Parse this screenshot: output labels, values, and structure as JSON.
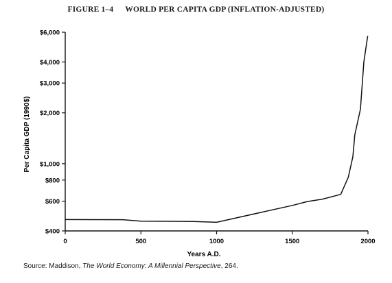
{
  "figure": {
    "number": "FIGURE 1–4",
    "title": "WORLD PER CAPITA GDP (INFLATION-ADJUSTED)"
  },
  "source": {
    "prefix": "Source: Maddison, ",
    "work": "The World Economy: A Millennial Perspective",
    "suffix": ", 264."
  },
  "chart_data": {
    "type": "line",
    "title": "WORLD PER CAPITA GDP (INFLATION-ADJUSTED)",
    "xlabel": "Years A.D.",
    "ylabel": "Per Capita GDP (1990$)",
    "xlim": [
      0,
      2000
    ],
    "ylim": [
      400,
      6000
    ],
    "yscale": "log",
    "grid": false,
    "legend": "none",
    "xticks": [
      {
        "value": 0,
        "label": "0"
      },
      {
        "value": 500,
        "label": "500"
      },
      {
        "value": 1000,
        "label": "1000"
      },
      {
        "value": 1500,
        "label": "1500"
      },
      {
        "value": 2000,
        "label": "2000"
      }
    ],
    "yticks": [
      {
        "value": 400,
        "label": "$400"
      },
      {
        "value": 600,
        "label": "$600"
      },
      {
        "value": 800,
        "label": "$800"
      },
      {
        "value": 1000,
        "label": "$1,000"
      },
      {
        "value": 2000,
        "label": "$2,000"
      },
      {
        "value": 3000,
        "label": "$3,000"
      },
      {
        "value": 4000,
        "label": "$4,000"
      },
      {
        "value": 6000,
        "label": "$6,000"
      }
    ],
    "series": [
      {
        "color": "#111111",
        "x": [
          0,
          380,
          500,
          850,
          1000,
          1500,
          1600,
          1700,
          1820,
          1870,
          1900,
          1913,
          1950,
          1973,
          1998
        ],
        "y": [
          467,
          466,
          457,
          455,
          450,
          566,
          597,
          617,
          658,
          830,
          1100,
          1480,
          2100,
          4000,
          5700
        ]
      }
    ]
  }
}
